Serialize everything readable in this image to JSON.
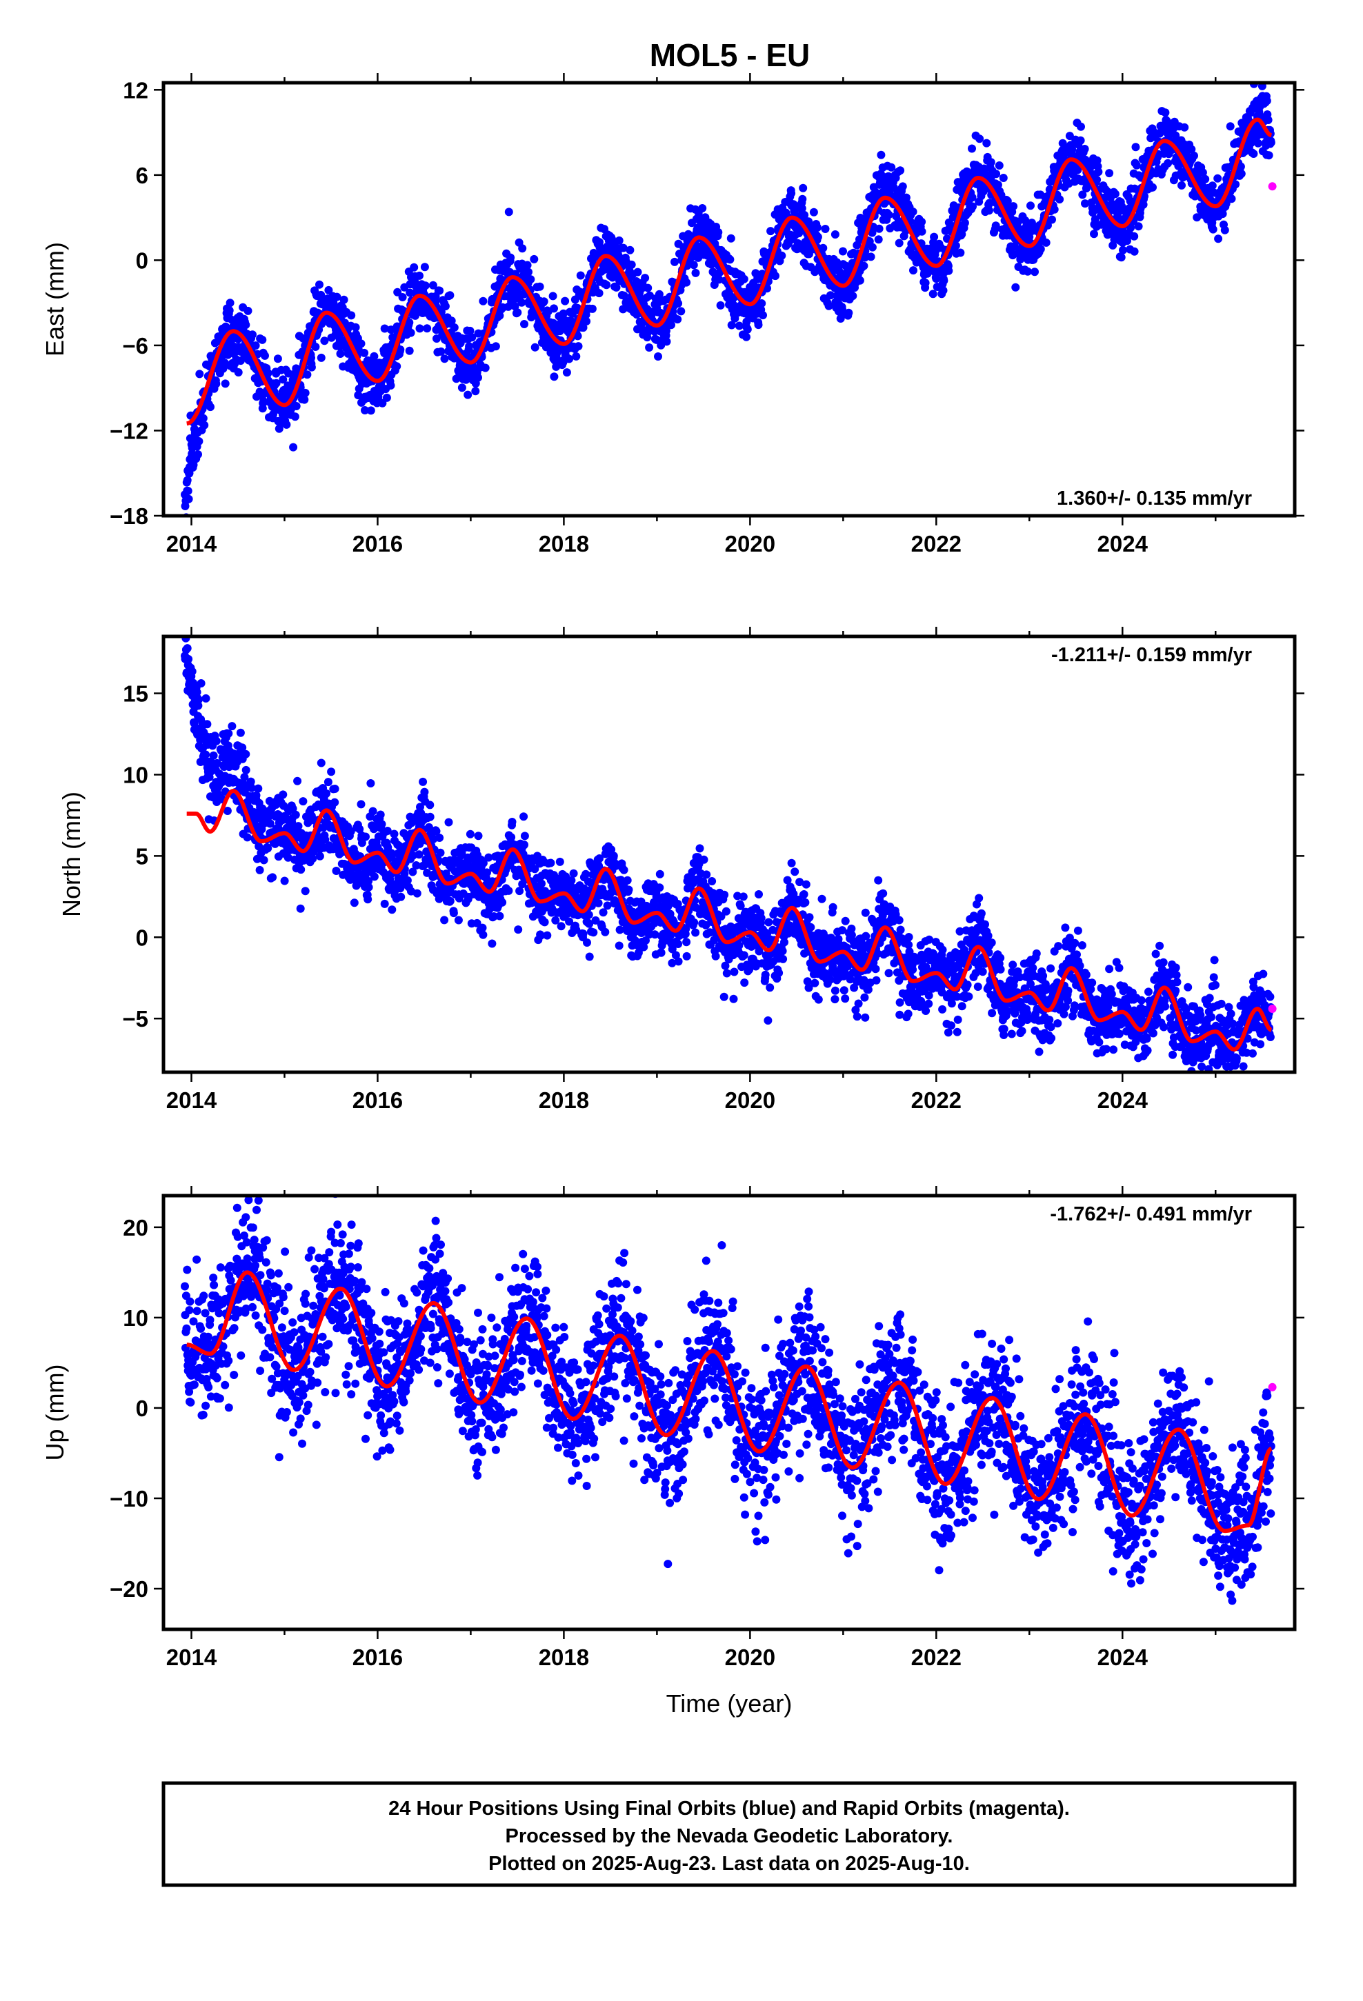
{
  "title": "MOL5 - EU",
  "caption": {
    "line1": "24 Hour Positions Using Final Orbits (blue) and Rapid Orbits (magenta).",
    "line2": "Processed by the Nevada Geodetic Laboratory.",
    "line3": "Plotted on 2025-Aug-23. Last data on 2025-Aug-10."
  },
  "colors": {
    "final": "#0000ff",
    "rapid": "#ff00ff",
    "model": "#ff0000",
    "frame": "#000000"
  },
  "chart_data": [
    {
      "type": "scatter",
      "component": "east",
      "ylabel": "East (mm)",
      "xlabel": "",
      "rate_label": "1.360+/- 0.135 mm/yr",
      "rate_position": "bottom-right",
      "xlim": [
        2013.7,
        2025.85
      ],
      "ylim": [
        -18,
        12.5
      ],
      "xticks": [
        2014,
        2016,
        2018,
        2020,
        2022,
        2024
      ],
      "xtick_labels": [
        "2014",
        "2016",
        "2018",
        "2020",
        "2022",
        "2024"
      ],
      "yticks": [
        -18,
        -12,
        -6,
        0,
        6,
        12
      ],
      "ytick_labels": [
        "−18",
        "−12",
        "−6",
        "0",
        "6",
        "12"
      ],
      "model": {
        "rate_mm_yr": 1.36,
        "anchors": [
          [
            2013.95,
            -11.5
          ],
          [
            2014.45,
            -5.0
          ],
          [
            2015.0,
            -10.2
          ],
          [
            2015.45,
            -3.7
          ],
          [
            2016.0,
            -8.5
          ],
          [
            2016.45,
            -2.5
          ],
          [
            2017.0,
            -7.2
          ],
          [
            2017.45,
            -1.2
          ],
          [
            2018.0,
            -5.9
          ],
          [
            2018.45,
            0.3
          ],
          [
            2019.0,
            -4.6
          ],
          [
            2019.45,
            1.6
          ],
          [
            2020.0,
            -3.1
          ],
          [
            2020.45,
            3.0
          ],
          [
            2021.0,
            -1.8
          ],
          [
            2021.45,
            4.4
          ],
          [
            2022.0,
            -0.4
          ],
          [
            2022.45,
            5.8
          ],
          [
            2023.0,
            1.0
          ],
          [
            2023.45,
            7.1
          ],
          [
            2024.0,
            2.4
          ],
          [
            2024.45,
            8.4
          ],
          [
            2025.0,
            3.8
          ],
          [
            2025.45,
            9.9
          ],
          [
            2025.6,
            8.8
          ]
        ]
      },
      "scatter": {
        "start": 2013.93,
        "end": 2025.6,
        "noise_mm": 1.1,
        "early_offset": {
          "start_mm": -6.0,
          "decay_yr": 0.08
        }
      },
      "rapid_points": [
        [
          2025.61,
          5.2
        ]
      ]
    },
    {
      "type": "scatter",
      "component": "north",
      "ylabel": "North (mm)",
      "xlabel": "",
      "rate_label": "-1.211+/- 0.159 mm/yr",
      "rate_position": "top-right",
      "xlim": [
        2013.7,
        2025.85
      ],
      "ylim": [
        -8.3,
        18.5
      ],
      "xticks": [
        2014,
        2016,
        2018,
        2020,
        2022,
        2024
      ],
      "xtick_labels": [
        "2014",
        "2016",
        "2018",
        "2020",
        "2022",
        "2024"
      ],
      "yticks": [
        -5,
        0,
        5,
        10,
        15
      ],
      "ytick_labels": [
        "−5",
        "0",
        "5",
        "10",
        "15"
      ],
      "model": {
        "rate_mm_yr": -1.211,
        "anchors": [
          [
            2013.95,
            7.6
          ],
          [
            2014.05,
            7.6
          ],
          [
            2014.2,
            6.5
          ],
          [
            2014.45,
            9.0
          ],
          [
            2014.75,
            5.9
          ],
          [
            2015.0,
            6.4
          ],
          [
            2015.2,
            5.3
          ],
          [
            2015.45,
            7.8
          ],
          [
            2015.75,
            4.6
          ],
          [
            2016.0,
            5.2
          ],
          [
            2016.2,
            4.0
          ],
          [
            2016.45,
            6.6
          ],
          [
            2016.75,
            3.3
          ],
          [
            2017.0,
            3.9
          ],
          [
            2017.2,
            2.8
          ],
          [
            2017.45,
            5.4
          ],
          [
            2017.75,
            2.2
          ],
          [
            2018.0,
            2.7
          ],
          [
            2018.2,
            1.6
          ],
          [
            2018.45,
            4.2
          ],
          [
            2018.75,
            0.9
          ],
          [
            2019.0,
            1.5
          ],
          [
            2019.2,
            0.4
          ],
          [
            2019.45,
            3.0
          ],
          [
            2019.75,
            -0.3
          ],
          [
            2020.0,
            0.3
          ],
          [
            2020.2,
            -0.8
          ],
          [
            2020.45,
            1.8
          ],
          [
            2020.75,
            -1.5
          ],
          [
            2021.0,
            -0.9
          ],
          [
            2021.2,
            -2.0
          ],
          [
            2021.45,
            0.6
          ],
          [
            2021.75,
            -2.7
          ],
          [
            2022.0,
            -2.2
          ],
          [
            2022.2,
            -3.2
          ],
          [
            2022.45,
            -0.6
          ],
          [
            2022.75,
            -3.9
          ],
          [
            2023.0,
            -3.4
          ],
          [
            2023.2,
            -4.5
          ],
          [
            2023.45,
            -1.9
          ],
          [
            2023.75,
            -5.1
          ],
          [
            2024.0,
            -4.6
          ],
          [
            2024.2,
            -5.7
          ],
          [
            2024.45,
            -3.1
          ],
          [
            2024.75,
            -6.4
          ],
          [
            2025.0,
            -5.8
          ],
          [
            2025.2,
            -6.9
          ],
          [
            2025.45,
            -4.4
          ],
          [
            2025.6,
            -5.7
          ]
        ]
      },
      "scatter": {
        "start": 2013.93,
        "end": 2025.6,
        "noise_mm": 1.15,
        "early_offset": {
          "start_mm": 10.0,
          "decay_yr": 0.3
        }
      },
      "rapid_points": [
        [
          2025.61,
          -4.4
        ]
      ]
    },
    {
      "type": "scatter",
      "component": "up",
      "ylabel": "Up (mm)",
      "xlabel": "Time (year)",
      "rate_label": "-1.762+/- 0.491 mm/yr",
      "rate_position": "top-right",
      "xlim": [
        2013.7,
        2025.85
      ],
      "ylim": [
        -24.5,
        23.5
      ],
      "xticks": [
        2014,
        2016,
        2018,
        2020,
        2022,
        2024
      ],
      "xtick_labels": [
        "2014",
        "2016",
        "2018",
        "2020",
        "2022",
        "2024"
      ],
      "yticks": [
        -20,
        -10,
        0,
        10,
        20
      ],
      "ytick_labels": [
        "−20",
        "−10",
        "0",
        "10",
        "20"
      ],
      "model": {
        "rate_mm_yr": -1.762,
        "anchors": [
          [
            2013.95,
            7.0
          ],
          [
            2014.2,
            6.0
          ],
          [
            2014.6,
            15.0
          ],
          [
            2015.1,
            4.2
          ],
          [
            2015.6,
            13.2
          ],
          [
            2016.1,
            2.4
          ],
          [
            2016.6,
            11.6
          ],
          [
            2017.1,
            0.6
          ],
          [
            2017.6,
            9.9
          ],
          [
            2018.1,
            -1.2
          ],
          [
            2018.6,
            8.0
          ],
          [
            2019.1,
            -3.0
          ],
          [
            2019.6,
            6.3
          ],
          [
            2020.1,
            -4.8
          ],
          [
            2020.6,
            4.6
          ],
          [
            2021.1,
            -6.6
          ],
          [
            2021.6,
            2.8
          ],
          [
            2022.1,
            -8.4
          ],
          [
            2022.6,
            1.1
          ],
          [
            2023.1,
            -10.1
          ],
          [
            2023.6,
            -0.7
          ],
          [
            2024.1,
            -11.9
          ],
          [
            2024.6,
            -2.4
          ],
          [
            2025.1,
            -13.6
          ],
          [
            2025.35,
            -13.0
          ],
          [
            2025.6,
            -4.5
          ]
        ]
      },
      "scatter": {
        "start": 2013.93,
        "end": 2025.6,
        "noise_mm": 3.8,
        "early_offset": {
          "start_mm": 0,
          "decay_yr": 1
        }
      },
      "rapid_points": [
        [
          2025.61,
          2.3
        ]
      ]
    }
  ]
}
